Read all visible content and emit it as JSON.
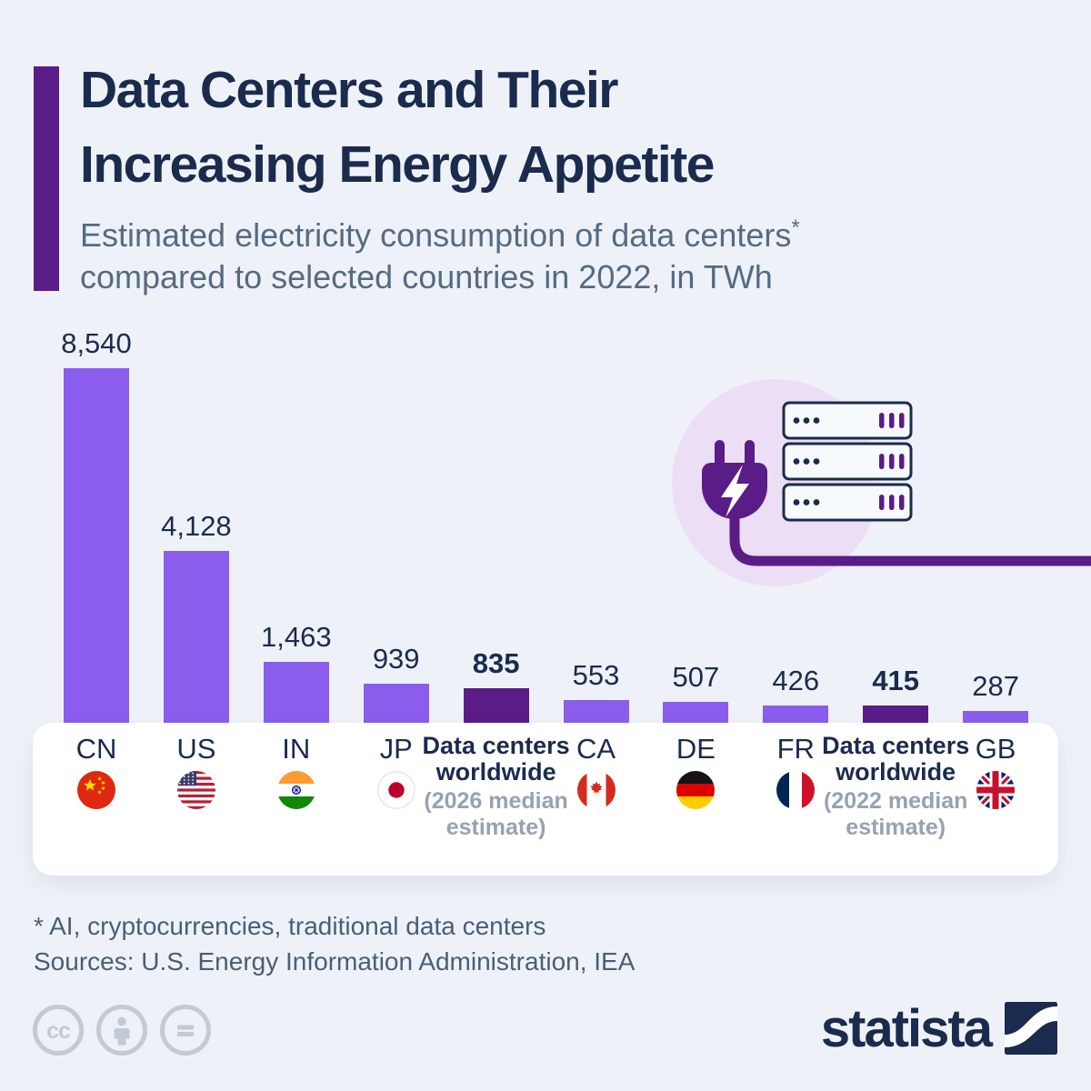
{
  "header": {
    "title_line1": "Data Centers and Their",
    "title_line2": "Increasing Energy Appetite",
    "subtitle_line1": "Estimated electricity consumption of data centers",
    "subtitle_asterisk": "*",
    "subtitle_line2": "compared to selected countries in 2022, in TWh"
  },
  "chart_data": {
    "type": "bar",
    "title": "Estimated electricity consumption of data centers* compared to selected countries in 2022, in TWh",
    "unit": "TWh",
    "ylim": [
      0,
      8540
    ],
    "grid": false,
    "categories": [
      "CN",
      "US",
      "IN",
      "JP",
      "Data centers worldwide (2026 median estimate)",
      "CA",
      "DE",
      "FR",
      "Data centers worldwide (2022 median estimate)",
      "GB"
    ],
    "values": [
      8540,
      4128,
      1463,
      939,
      835,
      553,
      507,
      426,
      415,
      287
    ],
    "bars": [
      {
        "id": "cn",
        "code": "CN",
        "flag": "china-flag",
        "value": 8540,
        "display": "8,540",
        "highlight": false
      },
      {
        "id": "us",
        "code": "US",
        "flag": "usa-flag",
        "value": 4128,
        "display": "4,128",
        "highlight": false
      },
      {
        "id": "in",
        "code": "IN",
        "flag": "india-flag",
        "value": 1463,
        "display": "1,463",
        "highlight": false
      },
      {
        "id": "jp",
        "code": "JP",
        "flag": "japan-flag",
        "value": 939,
        "display": "939",
        "highlight": false
      },
      {
        "id": "dc-2026",
        "code": "Data centers worldwide",
        "note": "(2026 median estimate)",
        "value": 835,
        "display": "835",
        "highlight": true
      },
      {
        "id": "ca",
        "code": "CA",
        "flag": "canada-flag",
        "value": 553,
        "display": "553",
        "highlight": false
      },
      {
        "id": "de",
        "code": "DE",
        "flag": "germany-flag",
        "value": 507,
        "display": "507",
        "highlight": false
      },
      {
        "id": "fr",
        "code": "FR",
        "flag": "france-flag",
        "value": 426,
        "display": "426",
        "highlight": false
      },
      {
        "id": "dc-2022",
        "code": "Data centers worldwide",
        "note": "(2022 median estimate)",
        "value": 415,
        "display": "415",
        "highlight": true
      },
      {
        "id": "gb",
        "code": "GB",
        "flag": "uk-flag",
        "value": 287,
        "display": "287",
        "highlight": false
      }
    ]
  },
  "illustration": {
    "icons": [
      "power-plug-icon",
      "lightning-bolt-icon",
      "server-rack-icon",
      "power-cord-line"
    ]
  },
  "footnote": {
    "line1": "* AI, cryptocurrencies, traditional data centers",
    "line2": "Sources: U.S. Energy Information Administration, IEA"
  },
  "branding": {
    "logo_text": "statista",
    "license_icons": [
      "cc-license-icon",
      "attribution-icon",
      "no-derivatives-icon"
    ]
  },
  "colors": {
    "background": "#eef2f8",
    "accent_purple": "#5a1c86",
    "bar_light_purple": "#8b5ded",
    "bar_dark_purple": "#5a1c86",
    "title_navy": "#1b2b4d",
    "subtitle_slate": "#566b82",
    "note_gray": "#97a2b1",
    "footnote_slate": "#4a5e74",
    "card_white": "#ffffff",
    "lavender_circle": "#ecdef4",
    "cc_gray": "#c3cad5"
  }
}
